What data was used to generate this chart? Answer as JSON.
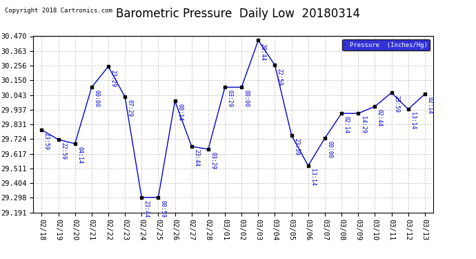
{
  "title": "Barometric Pressure  Daily Low  20180314",
  "copyright": "Copyright 2018 Cartronics.com",
  "legend_label": "Pressure  (Inches/Hg)",
  "x_labels": [
    "02/18",
    "02/19",
    "02/20",
    "02/21",
    "02/22",
    "02/23",
    "02/24",
    "02/25",
    "02/26",
    "02/27",
    "02/28",
    "03/01",
    "03/02",
    "03/03",
    "03/04",
    "03/05",
    "03/06",
    "03/07",
    "03/08",
    "03/09",
    "03/10",
    "03/11",
    "03/12",
    "03/13"
  ],
  "y_values": [
    29.79,
    29.72,
    29.69,
    30.1,
    30.25,
    30.03,
    29.3,
    29.3,
    30.0,
    29.67,
    29.65,
    30.1,
    30.1,
    30.44,
    30.26,
    29.75,
    29.53,
    29.73,
    29.91,
    29.91,
    29.96,
    30.06,
    29.94,
    30.05
  ],
  "time_labels": [
    "23:59",
    "22:59",
    "04:14",
    "00:00",
    "23:29",
    "07:29",
    "23:44",
    "00:59",
    "00:14",
    "23:44",
    "03:29",
    "03:29",
    "00:00",
    "20:44",
    "22:59",
    "23:59",
    "13:14",
    "00:00",
    "02:14",
    "14:29",
    "02:44",
    "23:59",
    "13:14",
    "02:14"
  ],
  "ylim_min": 29.191,
  "ylim_max": 30.47,
  "yticks": [
    29.191,
    29.298,
    29.404,
    29.511,
    29.617,
    29.724,
    29.831,
    29.937,
    30.043,
    30.15,
    30.256,
    30.363,
    30.47
  ],
  "line_color": "#0000cc",
  "marker_color": "#000000",
  "bg_color": "#ffffff",
  "grid_color": "#c8c8c8",
  "legend_bg": "#0000cc",
  "legend_fg": "#ffffff",
  "title_fontsize": 12,
  "tick_fontsize": 7.5,
  "annot_fontsize": 6,
  "copyright_fontsize": 6.5
}
